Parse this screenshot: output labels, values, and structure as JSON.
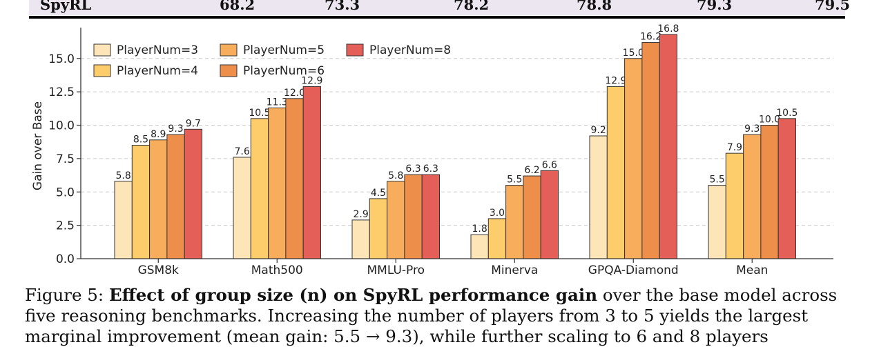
{
  "table_row": {
    "label": "SpyRL",
    "values": [
      "68.2",
      "73.3",
      "78.2",
      "78.8",
      "79.3",
      "79.5"
    ]
  },
  "chart_data": {
    "type": "bar",
    "categories": [
      "GSM8k",
      "Math500",
      "MMLU-Pro",
      "Minerva",
      "GPQA-Diamond",
      "Mean"
    ],
    "series": [
      {
        "name": "PlayerNum=3",
        "color": "#fde5b7",
        "values": [
          5.8,
          7.6,
          2.9,
          1.8,
          9.2,
          5.5
        ]
      },
      {
        "name": "PlayerNum=4",
        "color": "#fdcd6c",
        "values": [
          8.5,
          10.5,
          4.5,
          3.0,
          12.9,
          7.9
        ]
      },
      {
        "name": "PlayerNum=5",
        "color": "#f7ad5b",
        "values": [
          8.9,
          11.3,
          5.8,
          5.5,
          15.0,
          9.3
        ]
      },
      {
        "name": "PlayerNum=6",
        "color": "#ee8e4b",
        "values": [
          9.3,
          12.0,
          6.3,
          6.2,
          16.2,
          10.0
        ]
      },
      {
        "name": "PlayerNum=8",
        "color": "#e35f57",
        "values": [
          9.7,
          12.9,
          6.3,
          6.6,
          16.8,
          10.5
        ]
      }
    ],
    "ylabel": "Gain over Base",
    "xlabel": "",
    "ylim": [
      0,
      16.9
    ],
    "yticks": [
      "0.0",
      "2.5",
      "5.0",
      "7.5",
      "10.0",
      "12.5",
      "15.0"
    ],
    "grid": true,
    "legend": "top-left"
  },
  "caption": {
    "figure_label": "Figure 5: ",
    "bold_text": "Effect of group size (n) on SpyRL performance gain",
    "line1_rest": " over the base model across",
    "line2": "five reasoning benchmarks. Increasing the number of players from 3 to 5 yields the largest",
    "line3": "marginal improvement (mean gain: 5.5 → 9.3), while further scaling to 6 and 8 players"
  }
}
